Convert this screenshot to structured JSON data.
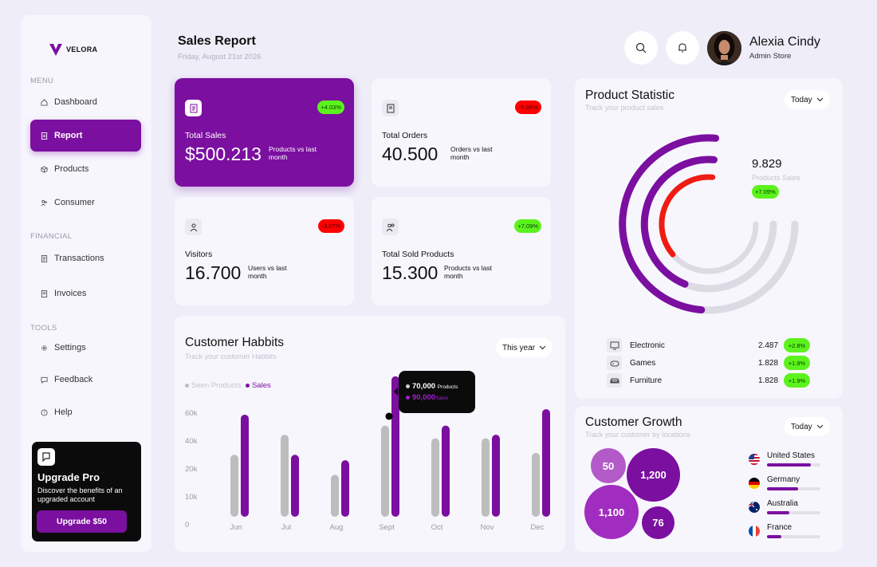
{
  "brand": {
    "name": "VELORA",
    "accent": "#7b0fa0"
  },
  "sidebar": {
    "sections": [
      "MENU",
      "FINANCIAL",
      "TOOLS"
    ],
    "items": [
      {
        "label": "Dashboard",
        "icon": "home-icon"
      },
      {
        "label": "Report",
        "icon": "report-icon",
        "active": true
      },
      {
        "label": "Products",
        "icon": "box-icon"
      },
      {
        "label": "Consumer",
        "icon": "users-icon"
      },
      {
        "label": "Transactions",
        "icon": "receipt-icon"
      },
      {
        "label": "Invoices",
        "icon": "invoice-icon"
      },
      {
        "label": "Settings",
        "icon": "gear-icon"
      },
      {
        "label": "Feedback",
        "icon": "chat-icon"
      },
      {
        "label": "Help",
        "icon": "help-icon"
      }
    ],
    "upgrade": {
      "title": "Upgrade Pro",
      "text": "Discover the benefits of an upgraded account",
      "button": "Upgrade $50"
    }
  },
  "header": {
    "title": "Sales Report",
    "date": "Friday, August 21st 2026",
    "user": {
      "name": "Alexia Cindy",
      "role": "Admin Store"
    }
  },
  "stats": [
    {
      "label": "Total Sales",
      "value": "$500.213",
      "note": "Products vs last month",
      "badge": "+4.03%",
      "trend": "up"
    },
    {
      "label": "Total Orders",
      "value": "40.500",
      "note": "Orders vs last month",
      "badge": "-5.09%",
      "trend": "down"
    },
    {
      "label": "Visitors",
      "value": "16.700",
      "note": "Users vs last month",
      "badge": "-3.07%",
      "trend": "down"
    },
    {
      "label": "Total Sold Products",
      "value": "15.300",
      "note": "Products vs last month",
      "badge": "+7.09%",
      "trend": "up"
    }
  ],
  "habits": {
    "title": "Customer Habbits",
    "subtitle": "Track your customer Habbits",
    "period": "This year",
    "tooltip": {
      "seen": "70,000",
      "seen_label": "Products",
      "sales": "90,000",
      "sales_label": "Sales"
    }
  },
  "chart_data": {
    "type": "bar",
    "categories": [
      "Jun",
      "Jul",
      "Aug",
      "Sept",
      "Oct",
      "Nov",
      "Dec"
    ],
    "series": [
      {
        "name": "Seen Products",
        "color": "#bdbdbd",
        "values": [
          34000,
          45000,
          23000,
          50000,
          43000,
          43000,
          35000
        ]
      },
      {
        "name": "Sales",
        "color": "#7b0fa0",
        "values": [
          56000,
          34000,
          31000,
          77000,
          50000,
          45000,
          59000
        ]
      }
    ],
    "yticks": [
      "0",
      "10k",
      "20k",
      "40k",
      "60k"
    ],
    "ylim": [
      0,
      80000
    ],
    "legend": "top-left"
  },
  "product_statistic": {
    "title": "Product Statistic",
    "subtitle": "Track your product sales",
    "period": "Today",
    "total": "9.829",
    "total_label": "Products Sales",
    "total_badge": "+7.09%",
    "rings": [
      {
        "fraction": 0.64,
        "color": "#7b0fa0"
      },
      {
        "fraction": 0.58,
        "color": "#7b0fa0"
      },
      {
        "fraction": 0.48,
        "color": "#ee1c12"
      }
    ],
    "categories": [
      {
        "name": "Electronic",
        "value": "2.487",
        "badge": "+2.8%",
        "icon": "monitor-icon"
      },
      {
        "name": "Games",
        "value": "1.828",
        "badge": "+1.9%",
        "icon": "gamepad-icon"
      },
      {
        "name": "Furniture",
        "value": "1.828",
        "badge": "+1.9%",
        "icon": "sofa-icon"
      }
    ]
  },
  "growth": {
    "title": "Customer Growth",
    "subtitle": "Track your customer by locations",
    "period": "Today",
    "bubbles": [
      "50",
      "1,200",
      "1,100",
      "76"
    ],
    "countries": [
      {
        "name": "United States",
        "fraction": 0.82
      },
      {
        "name": "Germany",
        "fraction": 0.58
      },
      {
        "name": "Australia",
        "fraction": 0.42
      },
      {
        "name": "France",
        "fraction": 0.27
      }
    ]
  }
}
